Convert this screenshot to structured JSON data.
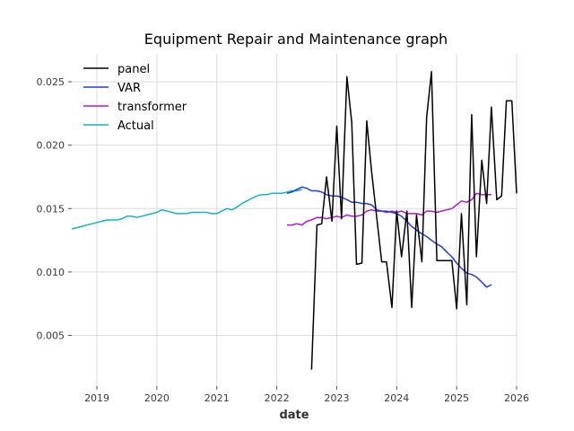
{
  "chart_data": {
    "type": "line",
    "title": "Equipment Repair and Maintenance graph",
    "xlabel": "date",
    "ylabel": "",
    "xlim": [
      2018.58,
      2026.0
    ],
    "ylim": [
      0.001,
      0.0272
    ],
    "x_ticks": [
      2019,
      2020,
      2021,
      2022,
      2023,
      2024,
      2025,
      2026
    ],
    "x_tick_labels": [
      "2019",
      "2020",
      "2021",
      "2022",
      "2023",
      "2024",
      "2025",
      "2026"
    ],
    "y_ticks": [
      0.005,
      0.01,
      0.015,
      0.02,
      0.025
    ],
    "y_tick_labels": [
      "0.005",
      "0.010",
      "0.015",
      "0.020",
      "0.025"
    ],
    "grid": true,
    "legend_position": "top-left",
    "series": [
      {
        "name": "panel",
        "color": "#000000",
        "x": [
          2022.58,
          2022.67,
          2022.75,
          2022.83,
          2022.92,
          2023.0,
          2023.08,
          2023.17,
          2023.25,
          2023.33,
          2023.42,
          2023.5,
          2023.58,
          2023.67,
          2023.75,
          2023.83,
          2023.92,
          2024.0,
          2024.08,
          2024.17,
          2024.25,
          2024.33,
          2024.42,
          2024.5,
          2024.58,
          2024.67,
          2024.75,
          2024.83,
          2024.92,
          2025.0,
          2025.08,
          2025.17,
          2025.25,
          2025.33,
          2025.42,
          2025.5,
          2025.58,
          2025.67,
          2025.75,
          2025.83,
          2025.92,
          2026.0
        ],
        "y": [
          0.0023,
          0.0137,
          0.0138,
          0.0175,
          0.014,
          0.0215,
          0.0142,
          0.0254,
          0.0218,
          0.0106,
          0.0107,
          0.0219,
          0.018,
          0.0142,
          0.0108,
          0.0108,
          0.0072,
          0.0148,
          0.0112,
          0.0148,
          0.0072,
          0.0145,
          0.0108,
          0.0222,
          0.0258,
          0.0109,
          0.0109,
          0.0109,
          0.0109,
          0.0071,
          0.0146,
          0.0074,
          0.0224,
          0.0112,
          0.0188,
          0.0154,
          0.023,
          0.0157,
          0.016,
          0.0235,
          0.0235,
          0.0162
        ]
      },
      {
        "name": "VAR",
        "color": "#1f3fd9",
        "x": [
          2022.17,
          2022.25,
          2022.33,
          2022.42,
          2022.5,
          2022.58,
          2022.67,
          2022.75,
          2022.83,
          2022.92,
          2023.0,
          2023.08,
          2023.17,
          2023.25,
          2023.33,
          2023.42,
          2023.5,
          2023.58,
          2023.67,
          2023.75,
          2023.83,
          2023.92,
          2024.0,
          2024.08,
          2024.17,
          2024.25,
          2024.33,
          2024.42,
          2024.5,
          2024.58,
          2024.67,
          2024.75,
          2024.83,
          2024.92,
          2025.0,
          2025.08,
          2025.17,
          2025.25,
          2025.33,
          2025.42,
          2025.5,
          2025.58
        ],
        "y": [
          0.0162,
          0.0163,
          0.0165,
          0.0167,
          0.0166,
          0.0164,
          0.0164,
          0.0163,
          0.0161,
          0.016,
          0.016,
          0.0159,
          0.0157,
          0.0155,
          0.0155,
          0.0154,
          0.0154,
          0.0153,
          0.0149,
          0.0148,
          0.0148,
          0.0147,
          0.0146,
          0.0144,
          0.014,
          0.0136,
          0.0133,
          0.013,
          0.0128,
          0.0125,
          0.0122,
          0.012,
          0.0116,
          0.0112,
          0.0107,
          0.0103,
          0.0099,
          0.0098,
          0.0096,
          0.0092,
          0.0088,
          0.009
        ]
      },
      {
        "name": "transformer",
        "color": "#b01bc4",
        "x": [
          2022.17,
          2022.25,
          2022.33,
          2022.42,
          2022.5,
          2022.58,
          2022.67,
          2022.75,
          2022.83,
          2022.92,
          2023.0,
          2023.08,
          2023.17,
          2023.25,
          2023.33,
          2023.42,
          2023.5,
          2023.58,
          2023.67,
          2023.75,
          2023.83,
          2023.92,
          2024.0,
          2024.08,
          2024.17,
          2024.25,
          2024.33,
          2024.42,
          2024.5,
          2024.58,
          2024.67,
          2024.75,
          2024.83,
          2024.92,
          2025.0,
          2025.08,
          2025.17,
          2025.25,
          2025.33,
          2025.42,
          2025.5,
          2025.58
        ],
        "y": [
          0.0137,
          0.0137,
          0.0138,
          0.0137,
          0.014,
          0.0141,
          0.0143,
          0.0143,
          0.0142,
          0.0143,
          0.0144,
          0.0143,
          0.0145,
          0.0144,
          0.0144,
          0.0145,
          0.0148,
          0.0149,
          0.0148,
          0.0148,
          0.0147,
          0.0148,
          0.0147,
          0.0148,
          0.0146,
          0.0146,
          0.0146,
          0.0145,
          0.0148,
          0.0148,
          0.0147,
          0.0148,
          0.0149,
          0.015,
          0.0153,
          0.0156,
          0.0155,
          0.0157,
          0.0162,
          0.0161,
          0.0161,
          0.0161
        ]
      },
      {
        "name": "Actual",
        "color": "#17b3c4",
        "x": [
          2018.58,
          2018.67,
          2018.75,
          2018.83,
          2018.92,
          2019.0,
          2019.08,
          2019.17,
          2019.25,
          2019.33,
          2019.42,
          2019.5,
          2019.58,
          2019.67,
          2019.75,
          2019.83,
          2019.92,
          2020.0,
          2020.08,
          2020.17,
          2020.25,
          2020.33,
          2020.42,
          2020.5,
          2020.58,
          2020.67,
          2020.75,
          2020.83,
          2020.92,
          2021.0,
          2021.08,
          2021.17,
          2021.25,
          2021.33,
          2021.42,
          2021.5,
          2021.58,
          2021.67,
          2021.75,
          2021.83,
          2021.92,
          2022.0,
          2022.08,
          2022.17,
          2022.25,
          2022.33,
          2022.42
        ],
        "y": [
          0.0134,
          0.0135,
          0.0136,
          0.0137,
          0.0138,
          0.0139,
          0.014,
          0.0141,
          0.0141,
          0.0141,
          0.0142,
          0.0144,
          0.0144,
          0.0143,
          0.0144,
          0.0145,
          0.0146,
          0.0147,
          0.0149,
          0.0148,
          0.0147,
          0.0146,
          0.0146,
          0.0146,
          0.0147,
          0.0147,
          0.0147,
          0.0147,
          0.0146,
          0.0146,
          0.0148,
          0.015,
          0.0149,
          0.0151,
          0.0154,
          0.0156,
          0.0158,
          0.016,
          0.0161,
          0.0161,
          0.0162,
          0.0162,
          0.0162,
          0.0163,
          0.0164,
          0.0164,
          0.0165
        ]
      }
    ]
  }
}
